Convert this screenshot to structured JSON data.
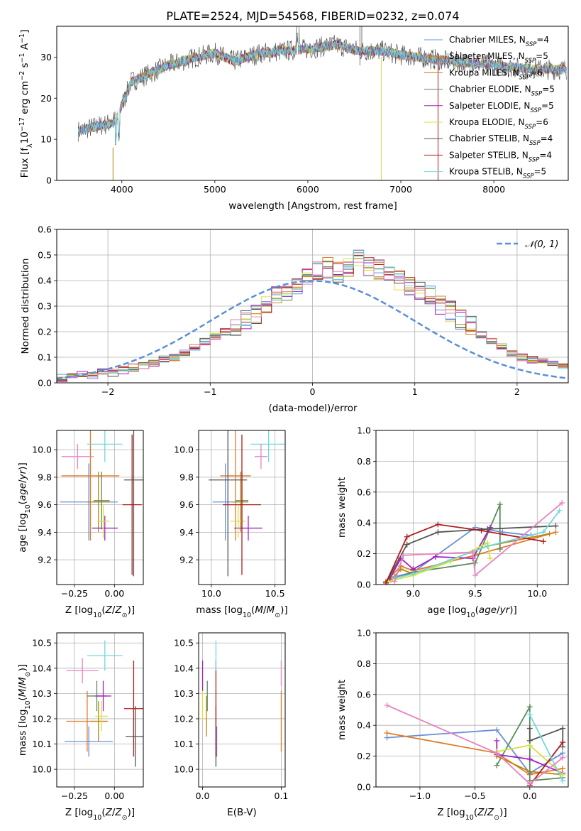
{
  "figure": {
    "title": "PLATE=2524, MJD=54568, FIBERID=0232, z=0.074"
  },
  "colors": {
    "Chabrier MILES": "#6a8fd8",
    "Salpeter MILES": "#e07b2a",
    "Kroupa MILES": "#b8860b",
    "Chabrier ELODIE": "#5a8a5a",
    "Salpeter ELODIE": "#a020c0",
    "Kroupa ELODIE": "#d8e040",
    "Chabrier STELIB": "#555555",
    "Salpeter STELIB": "#b01c1c",
    "Kroupa STELIB": "#70d8e0",
    "pink": "#e882c0"
  },
  "chart_data": [
    {
      "type": "line",
      "id": "spectrum",
      "xlabel": "wavelength [Angstrom, rest frame]",
      "ylabel_parts": [
        "Flux [f",
        "λ",
        "10",
        "−17",
        " erg cm",
        "−2",
        " s",
        "−1",
        " A",
        "−1",
        "]"
      ],
      "xlim": [
        3300,
        8800
      ],
      "ylim": [
        0,
        37.5
      ],
      "xticks": [
        4000,
        5000,
        6000,
        7000,
        8000
      ],
      "yticks": [
        0,
        10,
        20,
        30
      ],
      "continuum": [
        [
          3530,
          12
        ],
        [
          3700,
          13
        ],
        [
          3900,
          14
        ],
        [
          3960,
          16
        ],
        [
          4100,
          24
        ],
        [
          4300,
          26
        ],
        [
          4500,
          28
        ],
        [
          4800,
          30
        ],
        [
          5000,
          31
        ],
        [
          5200,
          29
        ],
        [
          5500,
          31
        ],
        [
          6000,
          32
        ],
        [
          6300,
          33
        ],
        [
          6560,
          31.5
        ],
        [
          6800,
          31.5
        ],
        [
          7000,
          30.5
        ],
        [
          7200,
          30
        ],
        [
          7500,
          29
        ],
        [
          7800,
          28.5
        ],
        [
          8200,
          27.5
        ],
        [
          8500,
          27
        ],
        [
          8780,
          27
        ]
      ],
      "legend": [
        {
          "name": "Chabrier MILES",
          "n": "4"
        },
        {
          "name": "Salpeter MILES",
          "n": "5"
        },
        {
          "name": "Kroupa MILES",
          "n": "6"
        },
        {
          "name": "Chabrier ELODIE",
          "n": "5"
        },
        {
          "name": "Salpeter ELODIE",
          "n": "5"
        },
        {
          "name": "Kroupa ELODIE",
          "n": "6"
        },
        {
          "name": "Chabrier STELIB",
          "n": "4"
        },
        {
          "name": "Salpeter STELIB",
          "n": "4"
        },
        {
          "name": "Kroupa STELIB",
          "n": "5"
        }
      ],
      "legend_sub": "SSP",
      "legend_prefix": "N"
    },
    {
      "type": "histogram",
      "id": "residuals",
      "xlabel": "(data-model)/error",
      "ylabel": "Normed distribution",
      "xlim": [
        -2.5,
        2.5
      ],
      "ylim": [
        0,
        0.6
      ],
      "xticks": [
        -2,
        -1,
        0,
        1,
        2
      ],
      "yticks": [
        0,
        0.1,
        0.2,
        0.3,
        0.4,
        0.5,
        0.6
      ],
      "bin_edges_start": -2.5,
      "bin_width": 0.1,
      "base_counts": [
        0.02,
        0.03,
        0.03,
        0.03,
        0.04,
        0.04,
        0.05,
        0.06,
        0.07,
        0.08,
        0.09,
        0.1,
        0.12,
        0.14,
        0.16,
        0.18,
        0.2,
        0.22,
        0.25,
        0.27,
        0.31,
        0.34,
        0.35,
        0.37,
        0.41,
        0.44,
        0.45,
        0.43,
        0.45,
        0.48,
        0.46,
        0.44,
        0.42,
        0.4,
        0.38,
        0.36,
        0.34,
        0.3,
        0.28,
        0.25,
        0.22,
        0.19,
        0.16,
        0.14,
        0.12,
        0.1,
        0.09,
        0.08,
        0.07,
        0.06,
        0.05,
        0.04,
        0.04,
        0.03,
        0.03,
        0.02,
        0.02,
        0.02,
        0.02,
        0.02,
        0.02
      ],
      "legend_label": "𝒩(0, 1)",
      "normal_color": "#5b8fd6"
    },
    {
      "type": "scatter",
      "id": "age-vs-Z",
      "xlabel": "Z [log10(Z/Z⊙)]",
      "ylabel": "age [log10(age/yr)]",
      "xlim": [
        -0.36,
        0.18
      ],
      "ylim": [
        9.02,
        10.14
      ],
      "xticks": [
        -0.25,
        0.0
      ],
      "yticks": [
        9.2,
        9.4,
        9.6,
        9.8,
        10.0
      ],
      "points": [
        {
          "c": "Chabrier MILES",
          "x": -0.16,
          "y": 9.62,
          "ex": 0.18,
          "ey": 0.28
        },
        {
          "c": "Salpeter MILES",
          "x": -0.15,
          "y": 9.81,
          "ex": 0.18,
          "ey": 0.47
        },
        {
          "c": "Kroupa MILES",
          "x": -0.1,
          "y": 9.62,
          "ex": 0.07,
          "ey": 0.22
        },
        {
          "c": "Chabrier ELODIE",
          "x": -0.08,
          "y": 9.63,
          "ex": 0.05,
          "ey": 0.21
        },
        {
          "c": "Salpeter ELODIE",
          "x": -0.06,
          "y": 9.43,
          "ex": 0.08,
          "ey": 0.09
        },
        {
          "c": "Kroupa ELODIE",
          "x": -0.07,
          "y": 9.48,
          "ex": 0.04,
          "ey": 0.12
        },
        {
          "c": "Chabrier STELIB",
          "x": 0.12,
          "y": 9.78,
          "ex": 0.06,
          "ey": 0.7
        },
        {
          "c": "Salpeter STELIB",
          "x": 0.11,
          "y": 9.6,
          "ex": 0.06,
          "ey": 0.51
        },
        {
          "c": "Kroupa STELIB",
          "x": -0.06,
          "y": 10.04,
          "ex": 0.11,
          "ey": 0.13
        },
        {
          "c": "pink",
          "x": -0.23,
          "y": 9.95,
          "ex": 0.1,
          "ey": 0.09
        }
      ]
    },
    {
      "type": "scatter",
      "id": "age-vs-mass",
      "xlabel": "mass [log10(M/M⊙)]",
      "ylabel": "",
      "xlim": [
        9.9,
        10.58
      ],
      "ylim": [
        9.02,
        10.14
      ],
      "xticks": [
        10.0,
        10.5
      ],
      "yticks": [
        9.2,
        9.4,
        9.6,
        9.8,
        10.0
      ],
      "points": [
        {
          "c": "Chabrier MILES",
          "x": 10.11,
          "y": 9.62,
          "ex": 0.1,
          "ey": 0.28
        },
        {
          "c": "Salpeter MILES",
          "x": 10.19,
          "y": 9.81,
          "ex": 0.12,
          "ey": 0.47
        },
        {
          "c": "Kroupa MILES",
          "x": 10.23,
          "y": 9.62,
          "ex": 0.06,
          "ey": 0.22
        },
        {
          "c": "Chabrier ELODIE",
          "x": 10.24,
          "y": 9.63,
          "ex": 0.05,
          "ey": 0.21
        },
        {
          "c": "Salpeter ELODIE",
          "x": 10.29,
          "y": 9.43,
          "ex": 0.11,
          "ey": 0.09
        },
        {
          "c": "Kroupa ELODIE",
          "x": 10.21,
          "y": 9.48,
          "ex": 0.06,
          "ey": 0.12
        },
        {
          "c": "Chabrier STELIB",
          "x": 10.13,
          "y": 9.78,
          "ex": 0.15,
          "ey": 0.7
        },
        {
          "c": "Salpeter STELIB",
          "x": 10.24,
          "y": 9.6,
          "ex": 0.15,
          "ey": 0.51
        },
        {
          "c": "Kroupa STELIB",
          "x": 10.45,
          "y": 10.04,
          "ex": 0.14,
          "ey": 0.13
        },
        {
          "c": "pink",
          "x": 10.39,
          "y": 9.95,
          "ex": 0.05,
          "ey": 0.09
        }
      ]
    },
    {
      "type": "line",
      "id": "weight-vs-age",
      "xlabel": "age [log10(age/yr)]",
      "ylabel": "mass weight",
      "xlim": [
        8.7,
        10.25
      ],
      "ylim": [
        0,
        1.0
      ],
      "xticks": [
        9.0,
        9.5,
        10.0
      ],
      "yticks": [
        0.0,
        0.2,
        0.4,
        0.6,
        0.8,
        1.0
      ],
      "series": [
        {
          "c": "Chabrier MILES",
          "pts": [
            [
              8.8,
              0.02
            ],
            [
              8.85,
              0.05
            ],
            [
              9.0,
              0.08
            ],
            [
              9.5,
              0.37
            ],
            [
              9.72,
              0.34
            ],
            [
              9.95,
              0.32
            ]
          ]
        },
        {
          "c": "Salpeter MILES",
          "pts": [
            [
              8.78,
              0.02
            ],
            [
              8.9,
              0.12
            ],
            [
              9.0,
              0.09
            ],
            [
              9.5,
              0.19
            ],
            [
              10.15,
              0.34
            ]
          ]
        },
        {
          "c": "Kroupa MILES",
          "pts": [
            [
              8.82,
              0.03
            ],
            [
              8.9,
              0.1
            ],
            [
              9.0,
              0.07
            ],
            [
              9.6,
              0.25
            ],
            [
              10.1,
              0.33
            ]
          ]
        },
        {
          "c": "Chabrier ELODIE",
          "pts": [
            [
              8.85,
              0.04
            ],
            [
              9.0,
              0.08
            ],
            [
              9.5,
              0.14
            ],
            [
              9.7,
              0.52
            ],
            [
              9.7,
              0.23
            ]
          ]
        },
        {
          "c": "Salpeter ELODIE",
          "pts": [
            [
              8.8,
              0.02
            ],
            [
              8.9,
              0.17
            ],
            [
              9.0,
              0.1
            ],
            [
              9.18,
              0.18
            ],
            [
              9.48,
              0.17
            ],
            [
              9.62,
              0.37
            ]
          ]
        },
        {
          "c": "Kroupa ELODIE",
          "pts": [
            [
              8.8,
              0.02
            ],
            [
              9.0,
              0.06
            ],
            [
              9.3,
              0.15
            ],
            [
              9.6,
              0.27
            ],
            [
              9.62,
              0.17
            ]
          ]
        },
        {
          "c": "Chabrier STELIB",
          "pts": [
            [
              8.78,
              0.01
            ],
            [
              8.95,
              0.26
            ],
            [
              9.2,
              0.34
            ],
            [
              9.6,
              0.36
            ],
            [
              10.15,
              0.38
            ]
          ]
        },
        {
          "c": "Salpeter STELIB",
          "pts": [
            [
              8.78,
              0.01
            ],
            [
              8.95,
              0.31
            ],
            [
              9.2,
              0.39
            ],
            [
              9.55,
              0.35
            ],
            [
              10.05,
              0.28
            ]
          ]
        },
        {
          "c": "Kroupa STELIB",
          "pts": [
            [
              8.85,
              0.04
            ],
            [
              9.0,
              0.07
            ],
            [
              9.3,
              0.16
            ],
            [
              9.6,
              0.25
            ],
            [
              10.05,
              0.34
            ],
            [
              10.18,
              0.48
            ]
          ]
        },
        {
          "c": "pink",
          "pts": [
            [
              8.85,
              0.02
            ],
            [
              8.92,
              0.19
            ],
            [
              9.48,
              0.21
            ],
            [
              9.5,
              0.06
            ],
            [
              10.2,
              0.53
            ]
          ]
        }
      ]
    },
    {
      "type": "scatter",
      "id": "mass-vs-Z",
      "xlabel": "Z [log10(Z/Z⊙)]",
      "ylabel": "mass [log10(M/M⊙)]",
      "xlim": [
        -0.36,
        0.18
      ],
      "ylim": [
        9.93,
        10.54
      ],
      "xticks": [
        -0.25,
        0.0
      ],
      "yticks": [
        10.0,
        10.1,
        10.2,
        10.3,
        10.4,
        10.5
      ],
      "points": [
        {
          "c": "Chabrier MILES",
          "x": -0.16,
          "y": 10.11,
          "ex": 0.15,
          "ey": 0.06
        },
        {
          "c": "Salpeter MILES",
          "x": -0.17,
          "y": 10.19,
          "ex": 0.13,
          "ey": 0.12
        },
        {
          "c": "Kroupa MILES",
          "x": -0.1,
          "y": 10.19,
          "ex": 0.05,
          "ey": 0.08
        },
        {
          "c": "Chabrier ELODIE",
          "x": -0.11,
          "y": 10.29,
          "ex": 0.06,
          "ey": 0.06
        },
        {
          "c": "Salpeter ELODIE",
          "x": -0.07,
          "y": 10.29,
          "ex": 0.05,
          "ey": 0.06
        },
        {
          "c": "Kroupa ELODIE",
          "x": -0.08,
          "y": 10.21,
          "ex": 0.04,
          "ey": 0.06
        },
        {
          "c": "Chabrier STELIB",
          "x": 0.13,
          "y": 10.13,
          "ex": 0.06,
          "ey": 0.12
        },
        {
          "c": "Salpeter STELIB",
          "x": 0.12,
          "y": 10.24,
          "ex": 0.06,
          "ey": 0.19
        },
        {
          "c": "Kroupa STELIB",
          "x": -0.06,
          "y": 10.45,
          "ex": 0.11,
          "ey": 0.06
        },
        {
          "c": "pink",
          "x": -0.2,
          "y": 10.39,
          "ex": 0.1,
          "ey": 0.05
        }
      ]
    },
    {
      "type": "scatter",
      "id": "mass-vs-EBV",
      "xlabel": "E(B-V)",
      "ylabel": "",
      "xlim": [
        -0.005,
        0.105
      ],
      "ylim": [
        9.93,
        10.54
      ],
      "xticks": [
        0.0,
        0.1
      ],
      "yticks": [
        10.0,
        10.1,
        10.2,
        10.3,
        10.4,
        10.5
      ],
      "points": [
        {
          "c": "Chabrier MILES",
          "x": 0.018,
          "y": 10.11,
          "ex": 0.0,
          "ey": 0.06
        },
        {
          "c": "Salpeter MILES",
          "x": 0.1,
          "y": 10.19,
          "ex": 0.0,
          "ey": 0.12
        },
        {
          "c": "Kroupa MILES",
          "x": 0.005,
          "y": 10.21,
          "ex": 0.0,
          "ey": 0.08
        },
        {
          "c": "Chabrier ELODIE",
          "x": 0.006,
          "y": 10.29,
          "ex": 0.0,
          "ey": 0.06
        },
        {
          "c": "Salpeter ELODIE",
          "x": 0.0,
          "y": 10.37,
          "ex": 0.0,
          "ey": 0.06
        },
        {
          "c": "Kroupa ELODIE",
          "x": 0.0,
          "y": 10.25,
          "ex": 0.0,
          "ey": 0.06
        },
        {
          "c": "Chabrier STELIB",
          "x": 0.017,
          "y": 10.13,
          "ex": 0.0,
          "ey": 0.12
        },
        {
          "c": "Salpeter STELIB",
          "x": 0.017,
          "y": 10.24,
          "ex": 0.0,
          "ey": 0.19
        },
        {
          "c": "Kroupa STELIB",
          "x": 0.017,
          "y": 10.45,
          "ex": 0.0,
          "ey": 0.06
        },
        {
          "c": "pink",
          "x": 0.1,
          "y": 10.38,
          "ex": 0.0,
          "ey": 0.05
        }
      ]
    },
    {
      "type": "line",
      "id": "weight-vs-Z",
      "xlabel": "Z [log10(Z/Z⊙)]",
      "ylabel": "mass weight",
      "xlim": [
        -1.4,
        0.35
      ],
      "ylim": [
        0,
        1.0
      ],
      "xticks": [
        -1.0,
        -0.5,
        0.0
      ],
      "yticks": [
        0.0,
        0.2,
        0.4,
        0.6,
        0.8,
        1.0
      ],
      "series": [
        {
          "c": "Chabrier MILES",
          "pts": [
            [
              -1.3,
              0.32
            ],
            [
              -0.3,
              0.37
            ],
            [
              0.0,
              0.09
            ],
            [
              0.3,
              0.22
            ]
          ]
        },
        {
          "c": "Salpeter MILES",
          "pts": [
            [
              -1.3,
              0.35
            ],
            [
              -0.3,
              0.22
            ],
            [
              0.0,
              0.08
            ],
            [
              0.3,
              0.12
            ]
          ]
        },
        {
          "c": "Kroupa MILES",
          "pts": [
            [
              -0.3,
              0.2
            ],
            [
              0.0,
              0.1
            ],
            [
              0.3,
              0.08
            ]
          ]
        },
        {
          "c": "Chabrier ELODIE",
          "pts": [
            [
              -0.3,
              0.14
            ],
            [
              0.0,
              0.52
            ],
            [
              0.0,
              0.04
            ],
            [
              0.3,
              0.06
            ]
          ]
        },
        {
          "c": "Salpeter ELODIE",
          "pts": [
            [
              -0.3,
              0.3
            ],
            [
              -0.3,
              0.21
            ],
            [
              0.0,
              0.18
            ],
            [
              0.3,
              0.09
            ]
          ]
        },
        {
          "c": "Kroupa ELODIE",
          "pts": [
            [
              -0.3,
              0.23
            ],
            [
              0.0,
              0.27
            ],
            [
              0.3,
              0.08
            ]
          ]
        },
        {
          "c": "Chabrier STELIB",
          "pts": [
            [
              0.0,
              0.38
            ],
            [
              0.0,
              0.3
            ],
            [
              0.3,
              0.38
            ],
            [
              0.3,
              0.26
            ]
          ]
        },
        {
          "c": "Salpeter STELIB",
          "pts": [
            [
              0.0,
              0.01
            ],
            [
              0.3,
              0.29
            ]
          ]
        },
        {
          "c": "Kroupa STELIB",
          "pts": [
            [
              0.0,
              0.47
            ],
            [
              0.3,
              0.04
            ]
          ]
        },
        {
          "c": "pink",
          "pts": [
            [
              -1.3,
              0.53
            ],
            [
              -0.3,
              0.22
            ],
            [
              0.0,
              0.02
            ],
            [
              0.3,
              0.19
            ]
          ]
        }
      ]
    }
  ]
}
